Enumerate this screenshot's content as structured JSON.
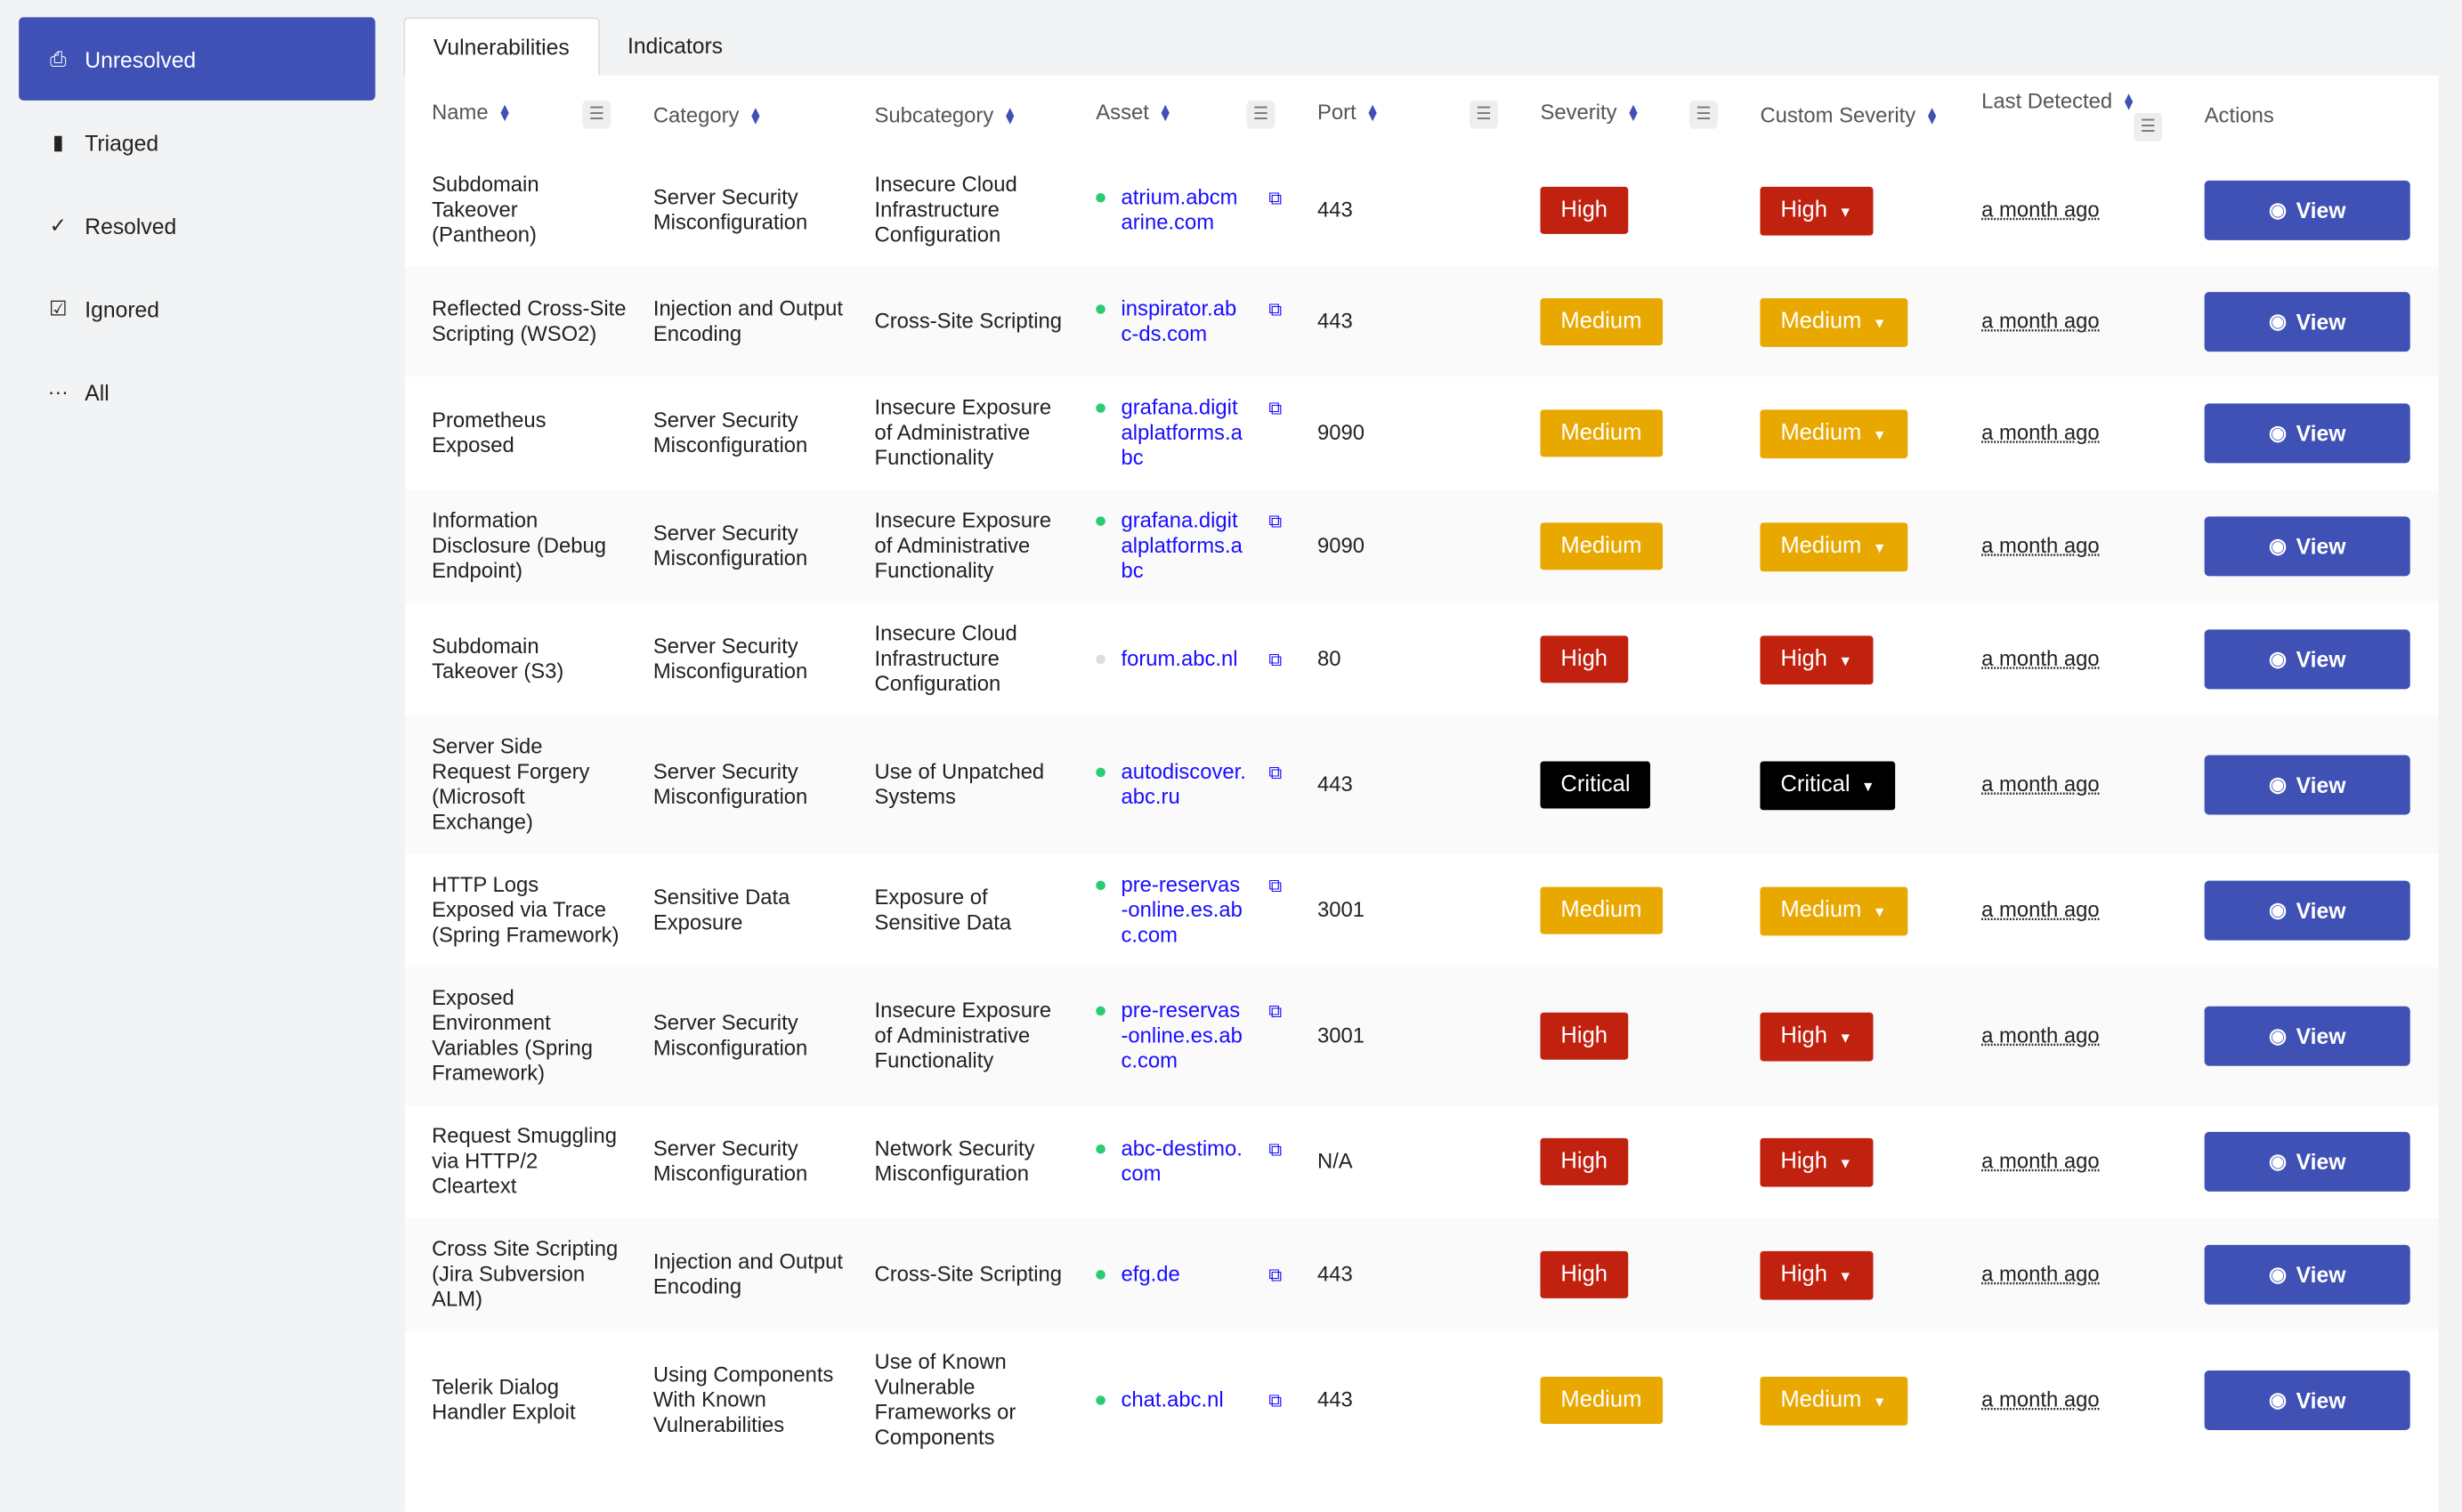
{
  "sidebar": {
    "items": [
      {
        "label": "Unresolved",
        "icon": "inbox-icon",
        "glyph": "⎙",
        "active": true
      },
      {
        "label": "Triaged",
        "icon": "file-plus-icon",
        "glyph": "▮",
        "active": false
      },
      {
        "label": "Resolved",
        "icon": "check-icon",
        "glyph": "✓",
        "active": false
      },
      {
        "label": "Ignored",
        "icon": "checkbox-icon",
        "glyph": "☑",
        "active": false
      },
      {
        "label": "All",
        "icon": "ellipsis-icon",
        "glyph": "···",
        "active": false
      }
    ]
  },
  "tabs": [
    {
      "label": "Vulnerabilities",
      "active": true
    },
    {
      "label": "Indicators",
      "active": false
    }
  ],
  "columns": [
    {
      "label": "Name",
      "sort": true,
      "filter": true
    },
    {
      "label": "Category",
      "sort": true,
      "filter": false
    },
    {
      "label": "Subcategory",
      "sort": true,
      "filter": false
    },
    {
      "label": "Asset",
      "sort": true,
      "filter": true
    },
    {
      "label": "Port",
      "sort": true,
      "filter": true
    },
    {
      "label": "Severity",
      "sort": true,
      "filter": true
    },
    {
      "label": "Custom Severity",
      "sort": true,
      "filter": false
    },
    {
      "label": "Last Detected",
      "sort": true,
      "filter": true
    },
    {
      "label": "Actions",
      "sort": false,
      "filter": false
    }
  ],
  "colors": {
    "accent": "#3f51b5",
    "high": "#c1210f",
    "medium": "#e8a800",
    "critical": "#000000",
    "link": "#1a0dff",
    "online": "#2ecc71"
  },
  "view_label": "View",
  "rows": [
    {
      "name": "Subdomain Takeover (Pantheon)",
      "category": "Server Security Misconfiguration",
      "subcategory": "Insecure Cloud Infrastructure Configuration",
      "asset": "atrium.abcmarine.com",
      "asset_online": true,
      "port": "443",
      "severity": "High",
      "custom_severity": "High",
      "last_detected": "a month ago"
    },
    {
      "name": "Reflected Cross-Site Scripting (WSO2)",
      "category": "Injection and Output Encoding",
      "subcategory": "Cross-Site Scripting",
      "asset": "inspirator.abc-ds.com",
      "asset_online": true,
      "port": "443",
      "severity": "Medium",
      "custom_severity": "Medium",
      "last_detected": "a month ago"
    },
    {
      "name": "Prometheus Exposed",
      "category": "Server Security Misconfiguration",
      "subcategory": "Insecure Exposure of Administrative Functionality",
      "asset": "grafana.digitalplatforms.abc",
      "asset_online": true,
      "port": "9090",
      "severity": "Medium",
      "custom_severity": "Medium",
      "last_detected": "a month ago"
    },
    {
      "name": "Information Disclosure (Debug Endpoint)",
      "category": "Server Security Misconfiguration",
      "subcategory": "Insecure Exposure of Administrative Functionality",
      "asset": "grafana.digitalplatforms.abc",
      "asset_online": true,
      "port": "9090",
      "severity": "Medium",
      "custom_severity": "Medium",
      "last_detected": "a month ago"
    },
    {
      "name": "Subdomain Takeover (S3)",
      "category": "Server Security Misconfiguration",
      "subcategory": "Insecure Cloud Infrastructure Configuration",
      "asset": "forum.abc.nl",
      "asset_online": false,
      "port": "80",
      "severity": "High",
      "custom_severity": "High",
      "last_detected": "a month ago"
    },
    {
      "name": "Server Side Request Forgery (Microsoft Exchange)",
      "category": "Server Security Misconfiguration",
      "subcategory": "Use of Unpatched Systems",
      "asset": "autodiscover.abc.ru",
      "asset_online": true,
      "port": "443",
      "severity": "Critical",
      "custom_severity": "Critical",
      "last_detected": "a month ago"
    },
    {
      "name": "HTTP Logs Exposed via Trace (Spring Framework)",
      "category": "Sensitive Data Exposure",
      "subcategory": "Exposure of Sensitive Data",
      "asset": "pre-reservas-online.es.abc.com",
      "asset_online": true,
      "port": "3001",
      "severity": "Medium",
      "custom_severity": "Medium",
      "last_detected": "a month ago"
    },
    {
      "name": "Exposed Environment Variables (Spring Framework)",
      "category": "Server Security Misconfiguration",
      "subcategory": "Insecure Exposure of Administrative Functionality",
      "asset": "pre-reservas-online.es.abc.com",
      "asset_online": true,
      "port": "3001",
      "severity": "High",
      "custom_severity": "High",
      "last_detected": "a month ago"
    },
    {
      "name": "Request Smuggling via HTTP/2 Cleartext",
      "category": "Server Security Misconfiguration",
      "subcategory": "Network Security Misconfiguration",
      "asset": "abc-destimo.com",
      "asset_online": true,
      "port": "N/A",
      "severity": "High",
      "custom_severity": "High",
      "last_detected": "a month ago"
    },
    {
      "name": "Cross Site Scripting (Jira Subversion ALM)",
      "category": "Injection and Output Encoding",
      "subcategory": "Cross-Site Scripting",
      "asset": "efg.de",
      "asset_online": true,
      "port": "443",
      "severity": "High",
      "custom_severity": "High",
      "last_detected": "a month ago"
    },
    {
      "name": "Telerik Dialog Handler Exploit",
      "category": "Using Components With Known Vulnerabilities",
      "subcategory": "Use of Known Vulnerable Frameworks or Components",
      "asset": "chat.abc.nl",
      "asset_online": true,
      "port": "443",
      "severity": "Medium",
      "custom_severity": "Medium",
      "last_detected": "a month ago"
    }
  ]
}
